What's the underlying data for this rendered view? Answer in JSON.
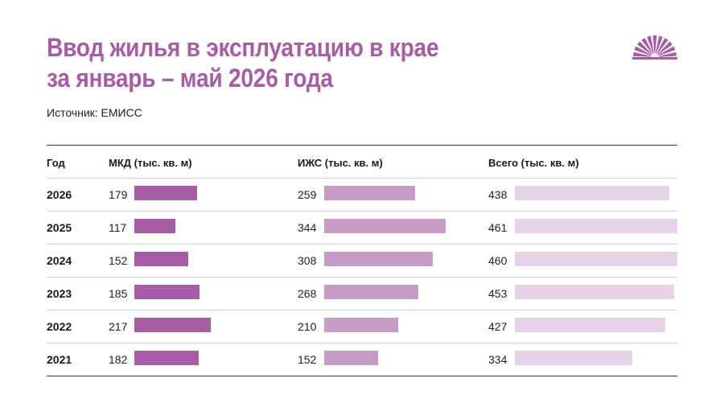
{
  "title_line1": "Ввод жилья в эксплуатацию в крае",
  "title_line2": "за январь – май 2026 года",
  "source": "Источник: ЕМИСС",
  "colors": {
    "title": "#a85ca6",
    "mkd": "#a85ca6",
    "izhs": "#c89ac6",
    "total": "#e8d2e7"
  },
  "logo_icon": "sunburst-logo-icon",
  "chart_data": {
    "type": "table",
    "columns": [
      "Год",
      "МКД (тыс. кв. м)",
      "ИЖС (тыс. кв. м)",
      "Всего (тыс. кв. м)"
    ],
    "rows": [
      {
        "year": "2026",
        "mkd": 179,
        "izhs": 259,
        "total": 438
      },
      {
        "year": "2025",
        "mkd": 117,
        "izhs": 344,
        "total": 461
      },
      {
        "year": "2024",
        "mkd": 152,
        "izhs": 308,
        "total": 460
      },
      {
        "year": "2023",
        "mkd": 185,
        "izhs": 268,
        "total": 453
      },
      {
        "year": "2022",
        "mkd": 217,
        "izhs": 210,
        "total": 427
      },
      {
        "year": "2021",
        "mkd": 182,
        "izhs": 152,
        "total": 334
      }
    ]
  }
}
